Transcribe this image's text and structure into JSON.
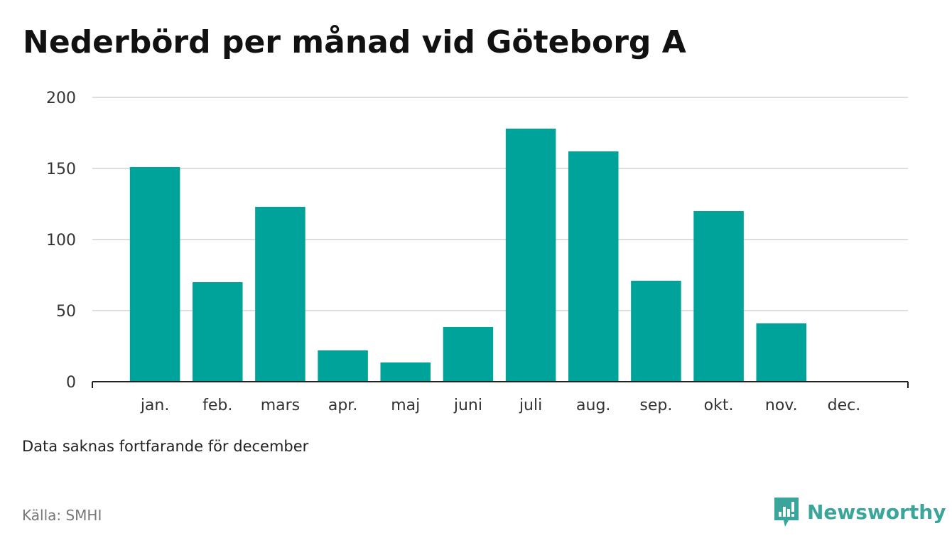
{
  "title": "Nederbörd per månad vid Göteborg A",
  "note": "Data saknas fortfarande för december",
  "source": "Källa: SMHI",
  "brand": {
    "name": "Newsworthy",
    "icon": "newsworthy-logo-icon",
    "color": "#3aa59a"
  },
  "colors": {
    "bar": "#00a39a",
    "grid": "#dddddd",
    "axis": "#222222"
  },
  "chart_data": {
    "type": "bar",
    "categories": [
      "jan.",
      "feb.",
      "mars",
      "apr.",
      "maj",
      "juni",
      "juli",
      "aug.",
      "sep.",
      "okt.",
      "nov.",
      "dec."
    ],
    "values": [
      151,
      70,
      123,
      22,
      13.5,
      38.5,
      178,
      162,
      71,
      120,
      41,
      null
    ],
    "ylim": [
      0,
      200
    ],
    "yticks": [
      0,
      50,
      100,
      150,
      200
    ],
    "grid": true,
    "title": "Nederbörd per månad vid Göteborg A"
  }
}
